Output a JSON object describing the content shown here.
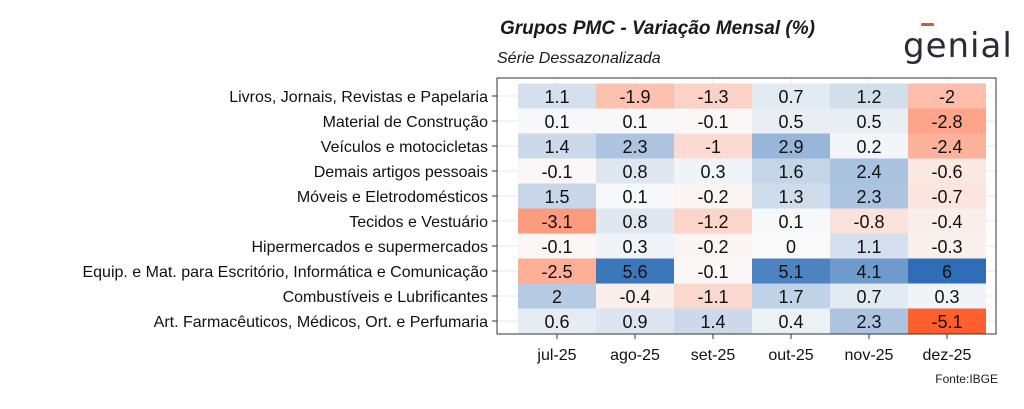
{
  "header": {
    "title": "Grupos PMC - Variação Mensal (%)",
    "subtitle": "Série Dessazonalizada",
    "logo": "genial"
  },
  "footer": {
    "source": "Fonte:IBGE"
  },
  "colors": {
    "negative": "#ff5e2e",
    "zero": "#fafafa",
    "positive": "#2f6eb6",
    "border": "#333333"
  },
  "chart_data": {
    "type": "heatmap",
    "title": "Grupos PMC - Variação Mensal (%)",
    "subtitle": "Série Dessazonalizada",
    "x": [
      "jul-25",
      "ago-25",
      "set-25",
      "out-25",
      "nov-25",
      "dez-25"
    ],
    "y": [
      "Livros, Jornais, Revistas e Papelaria",
      "Material de Construção",
      "Veículos e motocicletas",
      "Demais artigos pessoais",
      "Móveis e Eletrodomésticos",
      "Tecidos e Vestuário",
      "Hipermercados e supermercados",
      "Equip. e Mat. para Escritório, Informática e Comunicação",
      "Combustíveis e Lubrificantes",
      "Art. Farmacêuticos, Médicos, Ort. e Perfumaria"
    ],
    "values": [
      [
        1.1,
        -1.9,
        -1.3,
        0.7,
        1.2,
        -2
      ],
      [
        0.1,
        0.1,
        -0.1,
        0.5,
        0.5,
        -2.8
      ],
      [
        1.4,
        2.3,
        -1,
        2.9,
        0.2,
        -2.4
      ],
      [
        -0.1,
        0.8,
        0.3,
        1.6,
        2.4,
        -0.6
      ],
      [
        1.5,
        0.1,
        -0.2,
        1.3,
        2.3,
        -0.7
      ],
      [
        -3.1,
        0.8,
        -1.2,
        0.1,
        -0.8,
        -0.4
      ],
      [
        -0.1,
        0.3,
        -0.2,
        0,
        1.1,
        -0.3
      ],
      [
        -2.5,
        5.6,
        -0.1,
        5.1,
        4.1,
        6
      ],
      [
        2,
        -0.4,
        -1.1,
        1.7,
        0.7,
        0.3
      ],
      [
        0.6,
        0.9,
        1.4,
        0.4,
        2.3,
        -5.1
      ]
    ],
    "color_range": [
      -5.1,
      6
    ]
  }
}
